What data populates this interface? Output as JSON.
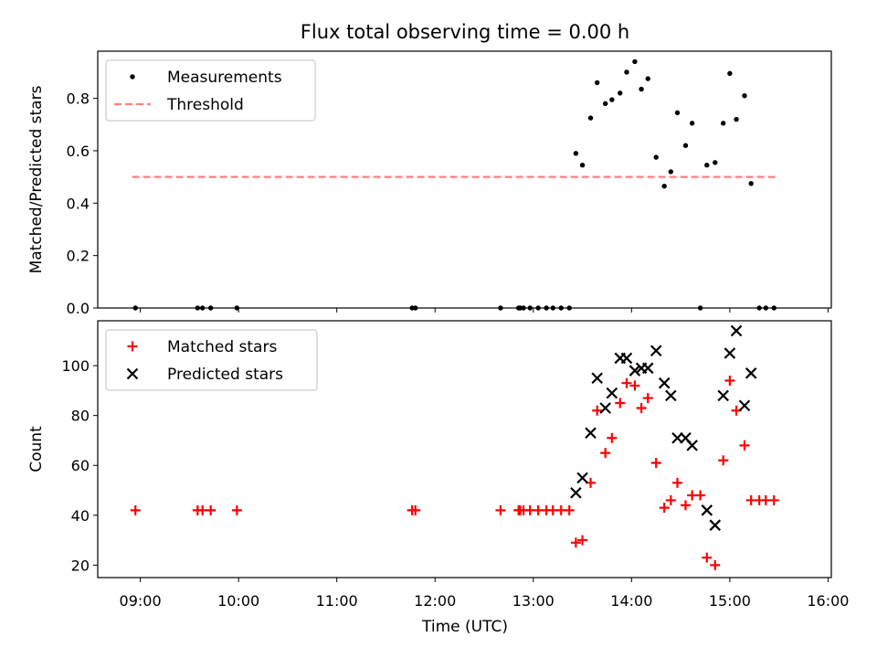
{
  "title": "Flux total observing time = 0.00 h",
  "xlabel": "Time (UTC)",
  "xticks": [
    "09:00",
    "10:00",
    "11:00",
    "12:00",
    "13:00",
    "14:00",
    "15:00",
    "16:00"
  ],
  "colors": {
    "measurements": "#000000",
    "threshold": "#ff7f7f",
    "matched": "#ff0000",
    "predicted": "#000000"
  },
  "chart_data": [
    {
      "type": "scatter",
      "ylabel": "Matched/Predicted stars",
      "xlim": [
        "08:34",
        "16:02"
      ],
      "ylim": [
        0,
        0.98
      ],
      "yticks": [
        "0.0",
        "0.2",
        "0.4",
        "0.6",
        "0.8"
      ],
      "legend": "top-left",
      "series": [
        {
          "name": "Measurements",
          "marker": "dot",
          "points": [
            [
              "08:57",
              0.0
            ],
            [
              "09:35",
              0.0
            ],
            [
              "09:38",
              0.0
            ],
            [
              "09:43",
              0.0
            ],
            [
              "09:59",
              0.0
            ],
            [
              "11:46",
              0.0
            ],
            [
              "11:48",
              0.0
            ],
            [
              "12:40",
              0.0
            ],
            [
              "12:51",
              0.0
            ],
            [
              "12:52",
              0.0
            ],
            [
              "12:54",
              0.0
            ],
            [
              "12:58",
              0.0
            ],
            [
              "13:03",
              0.0
            ],
            [
              "13:08",
              0.0
            ],
            [
              "13:12",
              0.0
            ],
            [
              "13:17",
              0.0
            ],
            [
              "13:22",
              0.0
            ],
            [
              "13:26",
              0.59
            ],
            [
              "13:30",
              0.545
            ],
            [
              "13:35",
              0.725
            ],
            [
              "13:39",
              0.86
            ],
            [
              "13:44",
              0.78
            ],
            [
              "13:48",
              0.795
            ],
            [
              "13:53",
              0.82
            ],
            [
              "13:57",
              0.9
            ],
            [
              "14:02",
              0.94
            ],
            [
              "14:06",
              0.835
            ],
            [
              "14:10",
              0.875
            ],
            [
              "14:15",
              0.575
            ],
            [
              "14:20",
              0.465
            ],
            [
              "14:24",
              0.52
            ],
            [
              "14:28",
              0.745
            ],
            [
              "14:33",
              0.62
            ],
            [
              "14:37",
              0.705
            ],
            [
              "14:42",
              0.0
            ],
            [
              "14:46",
              0.545
            ],
            [
              "14:51",
              0.555
            ],
            [
              "14:56",
              0.705
            ],
            [
              "15:00",
              0.895
            ],
            [
              "15:04",
              0.72
            ],
            [
              "15:09",
              0.81
            ],
            [
              "15:13",
              0.475
            ],
            [
              "15:18",
              0.0
            ],
            [
              "15:22",
              0.0
            ],
            [
              "15:27",
              0.0
            ]
          ]
        },
        {
          "name": "Threshold",
          "marker": "dashed-line",
          "points": [
            [
              "08:55",
              0.5
            ],
            [
              "15:29",
              0.5
            ]
          ]
        }
      ]
    },
    {
      "type": "scatter",
      "ylabel": "Count",
      "xlim": [
        "08:34",
        "16:02"
      ],
      "ylim": [
        15,
        118
      ],
      "yticks": [
        "20",
        "40",
        "60",
        "80",
        "100"
      ],
      "legend": "top-left",
      "series": [
        {
          "name": "Matched stars",
          "marker": "plus",
          "points": [
            [
              "08:57",
              42
            ],
            [
              "09:35",
              42
            ],
            [
              "09:38",
              42
            ],
            [
              "09:43",
              42
            ],
            [
              "09:59",
              42
            ],
            [
              "11:46",
              42
            ],
            [
              "11:48",
              42
            ],
            [
              "12:40",
              42
            ],
            [
              "12:51",
              42
            ],
            [
              "12:52",
              42
            ],
            [
              "12:54",
              42
            ],
            [
              "12:58",
              42
            ],
            [
              "13:03",
              42
            ],
            [
              "13:08",
              42
            ],
            [
              "13:12",
              42
            ],
            [
              "13:17",
              42
            ],
            [
              "13:22",
              42
            ],
            [
              "13:26",
              29
            ],
            [
              "13:30",
              30
            ],
            [
              "13:35",
              53
            ],
            [
              "13:39",
              82
            ],
            [
              "13:44",
              65
            ],
            [
              "13:48",
              71
            ],
            [
              "13:53",
              85
            ],
            [
              "13:57",
              93
            ],
            [
              "14:02",
              92
            ],
            [
              "14:06",
              83
            ],
            [
              "14:10",
              87
            ],
            [
              "14:15",
              61
            ],
            [
              "14:20",
              43
            ],
            [
              "14:24",
              46
            ],
            [
              "14:28",
              53
            ],
            [
              "14:33",
              44
            ],
            [
              "14:37",
              48
            ],
            [
              "14:42",
              48
            ],
            [
              "14:46",
              23
            ],
            [
              "14:51",
              20
            ],
            [
              "14:56",
              62
            ],
            [
              "15:00",
              94
            ],
            [
              "15:04",
              82
            ],
            [
              "15:09",
              68
            ],
            [
              "15:13",
              46
            ],
            [
              "15:18",
              46
            ],
            [
              "15:22",
              46
            ],
            [
              "15:27",
              46
            ]
          ]
        },
        {
          "name": "Predicted stars",
          "marker": "x",
          "points": [
            [
              "13:26",
              49
            ],
            [
              "13:30",
              55
            ],
            [
              "13:35",
              73
            ],
            [
              "13:39",
              95
            ],
            [
              "13:44",
              83
            ],
            [
              "13:48",
              89
            ],
            [
              "13:53",
              103
            ],
            [
              "13:57",
              103
            ],
            [
              "14:02",
              98
            ],
            [
              "14:06",
              99
            ],
            [
              "14:10",
              99
            ],
            [
              "14:15",
              106
            ],
            [
              "14:20",
              93
            ],
            [
              "14:24",
              88
            ],
            [
              "14:28",
              71
            ],
            [
              "14:33",
              71
            ],
            [
              "14:37",
              68
            ],
            [
              "14:46",
              42
            ],
            [
              "14:51",
              36
            ],
            [
              "14:56",
              88
            ],
            [
              "15:00",
              105
            ],
            [
              "15:04",
              114
            ],
            [
              "15:09",
              84
            ],
            [
              "15:13",
              97
            ]
          ]
        }
      ]
    }
  ]
}
